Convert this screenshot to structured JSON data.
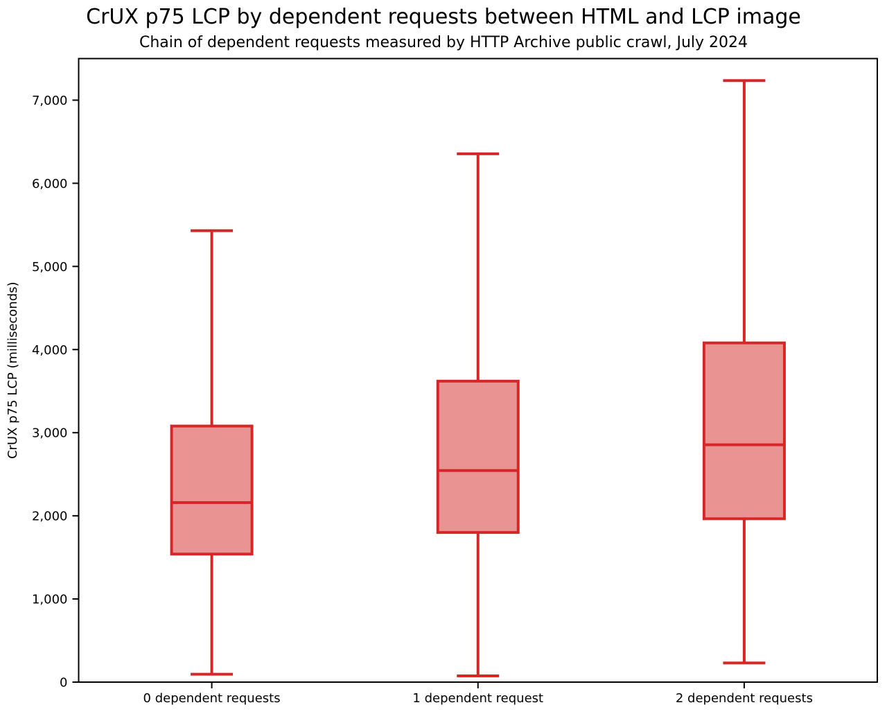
{
  "title": "CrUX p75 LCP by dependent requests between HTML and LCP image",
  "subtitle": "Chain of dependent requests measured by HTTP Archive public crawl, July 2024",
  "chart_data": {
    "type": "box",
    "title": "CrUX p75 LCP by dependent requests between HTML and LCP image",
    "subtitle": "Chain of dependent requests measured by HTTP Archive public crawl, July 2024",
    "xlabel": "",
    "ylabel": "CrUX p75 LCP (milliseconds)",
    "categories": [
      "0 dependent requests",
      "1 dependent request",
      "2 dependent requests"
    ],
    "series": [
      {
        "name": "0 dependent requests",
        "whisker_low": 95,
        "q1": 1540,
        "median": 2160,
        "q3": 3080,
        "whisker_high": 5430
      },
      {
        "name": "1 dependent request",
        "whisker_low": 75,
        "q1": 1800,
        "median": 2545,
        "q3": 3620,
        "whisker_high": 6355
      },
      {
        "name": "2 dependent requests",
        "whisker_low": 230,
        "q1": 1965,
        "median": 2855,
        "q3": 4080,
        "whisker_high": 7235
      }
    ],
    "ylim": [
      0,
      7500
    ],
    "yticks": [
      0,
      1000,
      2000,
      3000,
      4000,
      5000,
      6000,
      7000
    ],
    "ytick_labels": [
      "0",
      "1,000",
      "2,000",
      "3,000",
      "4,000",
      "5,000",
      "6,000",
      "7,000"
    ],
    "grid": false,
    "legend": "none",
    "colors": {
      "box_fill": "rgba(214,39,40,0.5)",
      "box_edge": "#d62728",
      "spine": "#000000",
      "text": "#000000"
    }
  }
}
